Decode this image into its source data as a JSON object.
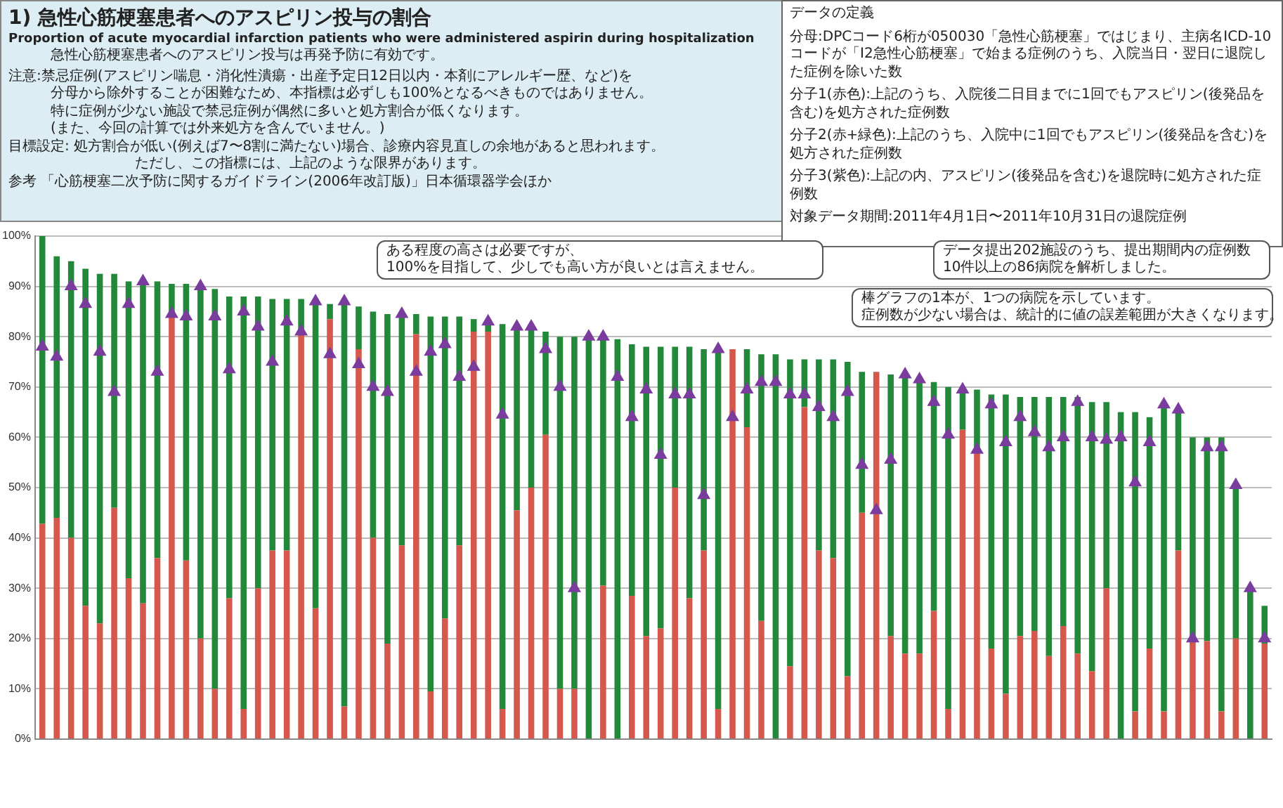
{
  "chart_data": {
    "type": "bar",
    "title": "1) 急性心筋梗塞患者へのアスピリン投与の割合",
    "subtitle": "Proportion of acute myocardial infarction patients who were administered aspirin  during hospitalization",
    "annotations": [
      "急性心筋梗塞患者へのアスピリン投与は再発予防に有効です。",
      "注意:禁忌症例(アスピリン喘息・消化性潰瘍・出産予定日12日以内・本剤にアレルギー歴、など)を",
      "分母から除外することが困難なため、本指標は必ずしも100%となるべきものではありません。",
      "特に症例が少ない施設で禁忌症例が偶然に多いと処方割合が低くなります。",
      "(また、今回の計算では外来処方を含んでいません。)",
      "目標設定: 処方割合が低い(例えば7〜8割に満たない)場合、診療内容見直しの余地があると思われます。",
      "ただし、この指標には、上記のような限界があります。",
      "参考 「心筋梗塞二次予防に関するガイドライン(2006年改訂版)」日本循環器学会ほか",
      "データの定義",
      "分母:DPCコード6桁が050030「急性心筋梗塞」ではじまり、主病名ICD-10コードが「I2急性心筋梗塞」で始まる症例のうち、入院当日・翌日に退院した症例を除いた数",
      "分子1(赤色):上記のうち、入院後二日目までに1回でもアスピリン(後発品を含む)を処方された症例数",
      "分子2(赤+緑色):上記のうち、入院中に1回でもアスピリン(後発品を含む)を処方された症例数",
      "分子3(紫色):上記の内、アスピリン(後発品を含む)を退院時に処方された症例数",
      "対象データ期間:2011年4月1日〜2011年10月31日の退院症例",
      "ある程度の高さは必要ですが、",
      "100%を目指して、少しでも高い方が良いとは言えません。",
      "データ提出202施設のうち、提出期間内の症例数",
      "10件以上の86病院を解析しました。",
      "棒グラフの1本が、1つの病院を示しています。",
      "症例数が少ない場合は、統計的に値の誤差範囲が大きくなります。"
    ],
    "categories": [
      null,
      null,
      null,
      null,
      null,
      null,
      null,
      null,
      null,
      null,
      null,
      null,
      null,
      null,
      null,
      null,
      null,
      null,
      null,
      null,
      null,
      null,
      null,
      null,
      null,
      null,
      null,
      null,
      null,
      null,
      null,
      null,
      null,
      null,
      null,
      null,
      null,
      null,
      null,
      null,
      null,
      null,
      null,
      null,
      null,
      null,
      null,
      null,
      null,
      null,
      null,
      null,
      null,
      null,
      null,
      null,
      null,
      null,
      null,
      null,
      null,
      null,
      null,
      null,
      null,
      null,
      null,
      null,
      null,
      null,
      null,
      null,
      null,
      null,
      null,
      null,
      null,
      null,
      null,
      null,
      null,
      null,
      null,
      null,
      null,
      null
    ],
    "stacked": true,
    "grid": "y",
    "legend": false,
    "marker": "triangle",
    "tick_labels": "y",
    "ylim": [
      0,
      100
    ],
    "yticks": [
      {
        "value": 0,
        "label": "0%"
      },
      {
        "value": 10,
        "label": "10%"
      },
      {
        "value": 20,
        "label": "20%"
      },
      {
        "value": 30,
        "label": "30%"
      },
      {
        "value": 40,
        "label": "40%"
      },
      {
        "value": 50,
        "label": "50%"
      },
      {
        "value": 60,
        "label": "60%"
      },
      {
        "value": 70,
        "label": "70%"
      },
      {
        "value": 80,
        "label": "80%"
      },
      {
        "value": 90,
        "label": "90%"
      },
      {
        "value": 100,
        "label": "100%"
      }
    ],
    "series": [
      {
        "type": "bar",
        "color": "#d4584c",
        "values": [
          42.8,
          44,
          40,
          26.5,
          23,
          46,
          32,
          27,
          36,
          84,
          35.5,
          20,
          10,
          28,
          6,
          30,
          37.5,
          37.5,
          80.5,
          26,
          83.5,
          6.5,
          77.5,
          40,
          19,
          38.5,
          80.5,
          9.5,
          24,
          38.5,
          81,
          81,
          6,
          45.5,
          50,
          60.5,
          10,
          10,
          0,
          30.5,
          0,
          28.5,
          20.5,
          22,
          50,
          28,
          37.5,
          6,
          77.5,
          62,
          23.5,
          0,
          14.5,
          66,
          37.5,
          36,
          12.5,
          45,
          73,
          20.5,
          17,
          17,
          25.5,
          6,
          61.5,
          57,
          18,
          9,
          20.5,
          21.5,
          16.5,
          22.5,
          17,
          13.5,
          30,
          0,
          5.5,
          18,
          5.5,
          37.5,
          19.5,
          19.5,
          5.5,
          20,
          0,
          19
        ]
      },
      {
        "type": "bar",
        "color": "#24883a",
        "values": [
          57.2,
          52,
          55,
          67,
          69.5,
          46.5,
          59,
          64,
          55,
          6.5,
          55,
          70,
          79.5,
          60,
          82,
          58,
          50,
          50,
          7,
          61.5,
          3,
          80.5,
          8.5,
          45,
          65.5,
          46,
          4,
          74.5,
          60,
          45.5,
          2.5,
          2,
          76.5,
          37,
          32.5,
          20.5,
          70,
          70,
          80,
          49.5,
          79.5,
          50,
          57.5,
          56,
          28,
          50,
          40,
          71.5,
          0,
          15.5,
          53,
          76.5,
          61,
          9.5,
          38,
          39.5,
          62.5,
          28,
          0,
          52,
          55.5,
          55,
          45.5,
          64,
          8.5,
          12.5,
          50.5,
          59.5,
          47.5,
          46.5,
          51.5,
          45.5,
          51,
          53.5,
          37,
          65,
          59.5,
          46,
          61,
          28,
          40.5,
          40.5,
          54.5,
          30.5,
          30,
          7.5
        ]
      },
      {
        "type": "scatter",
        "color": "#7a3d9e",
        "values": [
          78,
          76,
          90,
          86.5,
          77,
          69,
          86.5,
          91,
          73,
          84.5,
          84,
          90,
          84,
          73.5,
          85,
          82,
          75,
          83,
          81,
          87,
          76.5,
          87,
          74.5,
          70,
          69,
          84.5,
          73,
          77,
          78.5,
          72,
          74,
          83,
          64.5,
          82,
          82,
          77.5,
          70,
          30,
          80,
          80,
          72,
          64,
          69.5,
          56.5,
          68.5,
          68.5,
          48.5,
          77.5,
          64,
          69.5,
          71,
          71,
          68.5,
          68.5,
          66,
          64,
          69,
          54.5,
          45.5,
          55.5,
          72.5,
          71.5,
          67,
          60.5,
          69.5,
          57.5,
          66.5,
          59,
          64,
          61,
          58,
          60,
          67,
          60,
          59.5,
          60,
          51,
          59,
          66.5,
          65.5,
          20,
          58,
          58,
          50.5,
          30,
          20
        ]
      }
    ]
  }
}
